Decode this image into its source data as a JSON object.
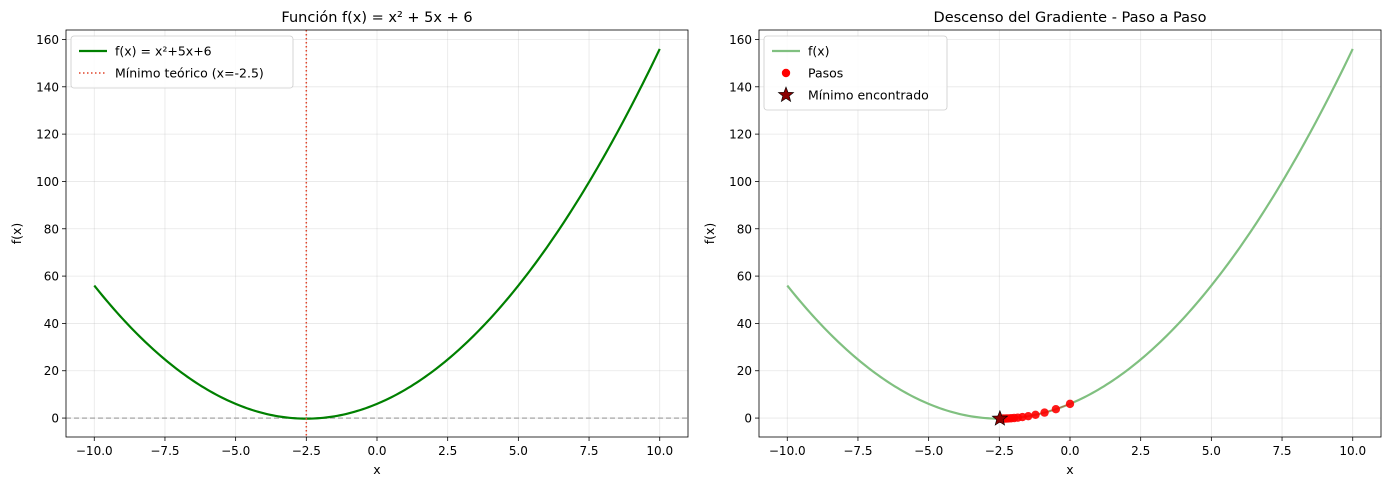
{
  "chart_data": [
    {
      "type": "line",
      "title": "Función f(x) = x² + 5x + 6",
      "xlabel": "x",
      "ylabel": "f(x)",
      "xlim": [
        -11.0,
        11.0
      ],
      "ylim": [
        -8.0,
        164.0
      ],
      "xticks": [
        -10,
        -7.5,
        -5,
        -2.5,
        0,
        2.5,
        5,
        7.5,
        10
      ],
      "xtick_labels": [
        "−10.0",
        "−7.5",
        "−5.0",
        "−2.5",
        "0.0",
        "2.5",
        "5.0",
        "7.5",
        "10.0"
      ],
      "yticks": [
        0,
        20,
        40,
        60,
        80,
        100,
        120,
        140,
        160
      ],
      "ytick_labels": [
        "0",
        "20",
        "40",
        "60",
        "80",
        "100",
        "120",
        "140",
        "160"
      ],
      "grid": true,
      "legend_position": "upper-left",
      "series": [
        {
          "name": "f(x) = x²+5x+6",
          "kind": "line",
          "color": "#008000",
          "x": [
            -10,
            -9,
            -8,
            -7,
            -6,
            -5,
            -4,
            -3,
            -2.5,
            -2,
            -1,
            0,
            1,
            2,
            3,
            4,
            5,
            6,
            7,
            8,
            9,
            10
          ],
          "y": [
            56,
            42,
            30,
            20,
            12,
            6,
            2,
            0,
            -0.25,
            0,
            2,
            6,
            12,
            20,
            30,
            42,
            56,
            72,
            90,
            110,
            132,
            156
          ]
        }
      ],
      "annotations": [
        {
          "kind": "vline",
          "x": -2.5,
          "style": "dotted",
          "color": "#e0442a",
          "label": "Mínimo teórico (x=-2.5)"
        },
        {
          "kind": "hline",
          "y": 0,
          "style": "dashed",
          "color": "#999999"
        }
      ]
    },
    {
      "type": "line",
      "title": "Descenso del Gradiente - Paso a Paso",
      "xlabel": "x",
      "ylabel": "f(x)",
      "xlim": [
        -11.0,
        11.0
      ],
      "ylim": [
        -8.0,
        164.0
      ],
      "xticks": [
        -10,
        -7.5,
        -5,
        -2.5,
        0,
        2.5,
        5,
        7.5,
        10
      ],
      "xtick_labels": [
        "−10.0",
        "−7.5",
        "−5.0",
        "−2.5",
        "0.0",
        "2.5",
        "5.0",
        "7.5",
        "10.0"
      ],
      "yticks": [
        0,
        20,
        40,
        60,
        80,
        100,
        120,
        140,
        160
      ],
      "ytick_labels": [
        "0",
        "20",
        "40",
        "60",
        "80",
        "100",
        "120",
        "140",
        "160"
      ],
      "grid": true,
      "legend_position": "upper-left",
      "series": [
        {
          "name": "f(x)",
          "kind": "line",
          "color": "#80c080",
          "x": [
            -10,
            -9,
            -8,
            -7,
            -6,
            -5,
            -4,
            -3,
            -2.5,
            -2,
            -1,
            0,
            1,
            2,
            3,
            4,
            5,
            6,
            7,
            8,
            9,
            10
          ],
          "y": [
            56,
            42,
            30,
            20,
            12,
            6,
            2,
            0,
            -0.25,
            0,
            2,
            6,
            12,
            20,
            30,
            42,
            56,
            72,
            90,
            110,
            132,
            156
          ]
        },
        {
          "name": "Pasos",
          "kind": "scatter",
          "color": "#ff0000",
          "x": [
            0.0,
            -0.5,
            -0.9,
            -1.22,
            -1.476,
            -1.681,
            -1.845,
            -1.976,
            -2.081,
            -2.165,
            -2.232,
            -2.286,
            -2.329,
            -2.363,
            -2.39,
            -2.412,
            -2.43,
            -2.444,
            -2.455,
            -2.464
          ],
          "y": [
            6.0,
            3.75,
            2.31,
            1.388,
            0.799,
            0.421,
            0.179,
            0.026,
            -0.074,
            -0.138,
            -0.178,
            -0.204,
            -0.221,
            -0.231,
            -0.238,
            -0.242,
            -0.245,
            -0.247,
            -0.248,
            -0.249
          ]
        },
        {
          "name": "Mínimo encontrado",
          "kind": "star",
          "color": "#8b0000",
          "x": [
            -2.48
          ],
          "y": [
            -0.25
          ]
        }
      ]
    }
  ]
}
